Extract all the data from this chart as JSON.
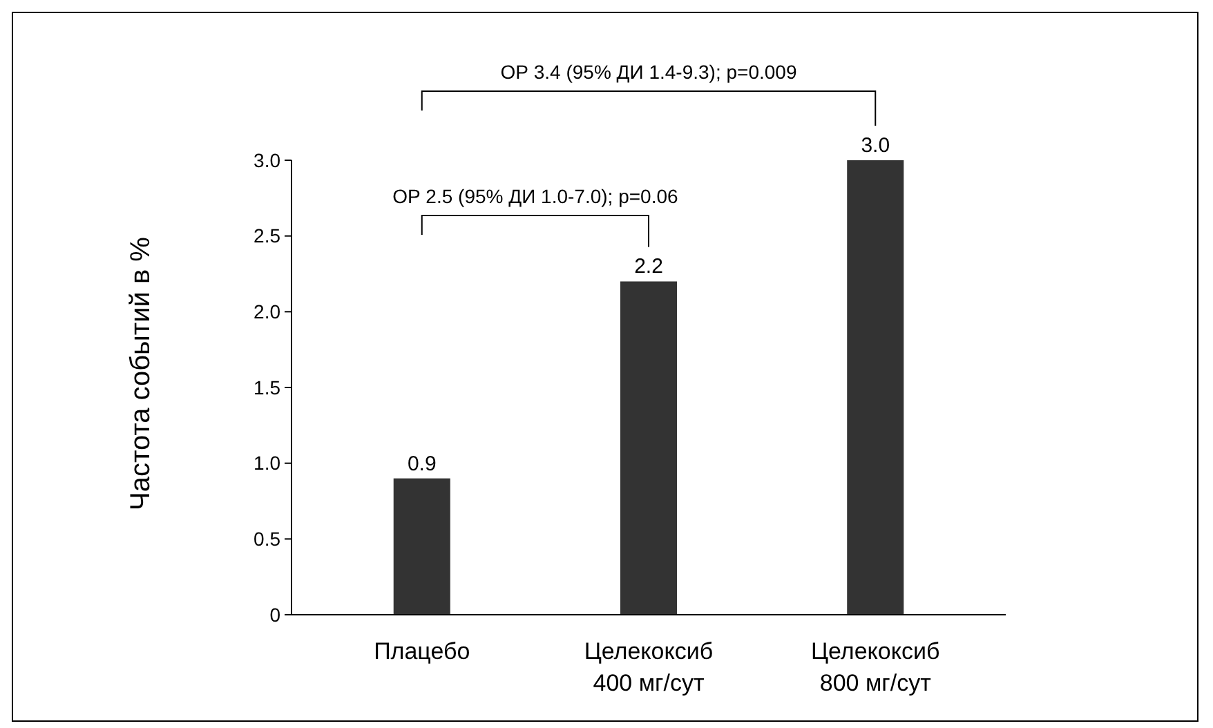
{
  "chart_data": {
    "type": "bar",
    "ylabel": "Частота событий в %",
    "categories": [
      "Плацебо",
      "Целекоксиб\n400 мг/сут",
      "Целекоксиб\n800 мг/сут"
    ],
    "values": [
      0.9,
      2.2,
      3.0
    ],
    "color": "#333333",
    "ylim": [
      0,
      3.0
    ],
    "yticks": [
      {
        "value": 0,
        "label": "0"
      },
      {
        "value": 0.5,
        "label": "0.5"
      },
      {
        "value": 1,
        "label": "1.0"
      },
      {
        "value": 1.5,
        "label": "1.5"
      },
      {
        "value": 2,
        "label": "2.0"
      },
      {
        "value": 2.5,
        "label": "2.5"
      },
      {
        "value": 3,
        "label": "3.0"
      }
    ],
    "value_labels": [
      "0.9",
      "2.2",
      "3.0"
    ],
    "annotations": [
      "ОР 3.4 (95% ДИ 1.4-9.3); p=0.009",
      "ОР 2.5 (95% ДИ 1.0-7.0); p=0.06"
    ]
  }
}
